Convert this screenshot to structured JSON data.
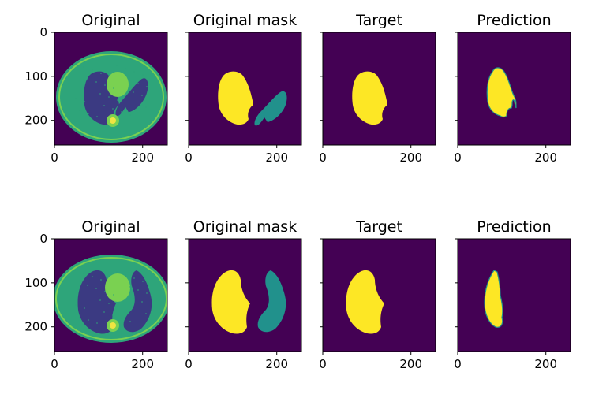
{
  "figure": {
    "rows": [
      {
        "panels": [
          {
            "title": "Original",
            "kind": "ct_slice_1",
            "show_yticks": true
          },
          {
            "title": "Original mask",
            "kind": "mask_both_1",
            "show_yticks": false
          },
          {
            "title": "Target",
            "kind": "mask_left_1",
            "show_yticks": false
          },
          {
            "title": "Prediction",
            "kind": "pred_1",
            "show_yticks": false
          }
        ]
      },
      {
        "panels": [
          {
            "title": "Original",
            "kind": "ct_slice_2",
            "show_yticks": true
          },
          {
            "title": "Original mask",
            "kind": "mask_both_2",
            "show_yticks": false
          },
          {
            "title": "Target",
            "kind": "mask_left_2",
            "show_yticks": false
          },
          {
            "title": "Prediction",
            "kind": "pred_2",
            "show_yticks": false
          }
        ]
      }
    ],
    "x_ticks": [
      "0",
      "200"
    ],
    "y_ticks": [
      "0",
      "100",
      "200"
    ],
    "colors": {
      "background": "#440154",
      "lung": "#fde725",
      "second_lung": "#21918c",
      "ct_body": "#2ea57a",
      "ct_dark": "#3b3a82",
      "ct_bright": "#7ad151"
    }
  }
}
